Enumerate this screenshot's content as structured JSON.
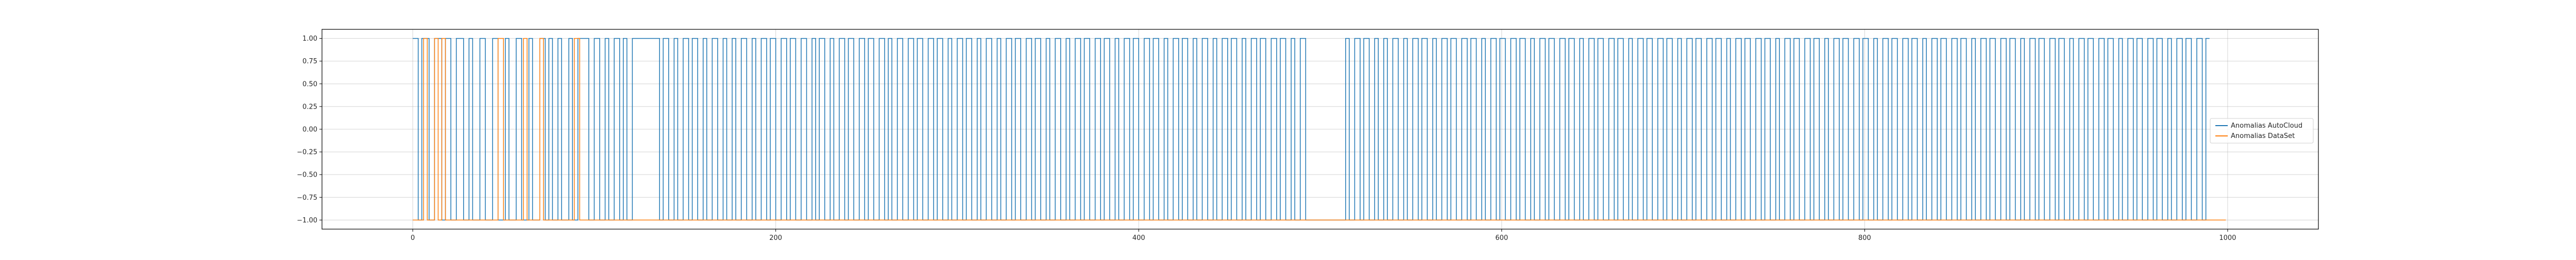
{
  "chart_data": {
    "type": "line",
    "title": "",
    "xlabel": "",
    "ylabel": "",
    "xlim": [
      -50,
      1050
    ],
    "ylim": [
      -1.1,
      1.1
    ],
    "grid": true,
    "legend_position": "center-right",
    "x_ticks": [
      0,
      200,
      400,
      600,
      800,
      1000
    ],
    "x_tick_labels": [
      "0",
      "200",
      "400",
      "600",
      "800",
      "1000"
    ],
    "y_ticks": [
      1.0,
      0.75,
      0.5,
      0.25,
      0.0,
      -0.25,
      -0.5,
      -0.75,
      -1.0
    ],
    "y_tick_labels": [
      "1.00",
      "0.75",
      "0.50",
      "0.25",
      "0.00",
      "−0.25",
      "−0.50",
      "−0.75",
      "−1.00"
    ],
    "series": [
      {
        "name": "Anomalias AutoCloud",
        "color": "#1f77b4",
        "type": "step",
        "x_start": 0,
        "x_end": 990,
        "initial_value": 1,
        "toggle_x": [
          3,
          5,
          9,
          12,
          16,
          18,
          21,
          24,
          28,
          31,
          33,
          37,
          40,
          44,
          47,
          51,
          53,
          57,
          60,
          64,
          66,
          70,
          73,
          75,
          77,
          80,
          82,
          86,
          88,
          91,
          97,
          100,
          103,
          106,
          108,
          111,
          114,
          116,
          118,
          121,
          136,
          138,
          141,
          144,
          146,
          149,
          152,
          154,
          157,
          160,
          162,
          165,
          168,
          171,
          173,
          176,
          178,
          181,
          184,
          187,
          189,
          192,
          195,
          197,
          200,
          203,
          206,
          208,
          211,
          214,
          217,
          220,
          222,
          224,
          227,
          230,
          232,
          235,
          238,
          240,
          243,
          246,
          249,
          251,
          254,
          257,
          260,
          262,
          264,
          267,
          270,
          273,
          276,
          278,
          281,
          284,
          287,
          289,
          292,
          295,
          297,
          300,
          303,
          305,
          308,
          311,
          313,
          316,
          319,
          322,
          324,
          327,
          330,
          332,
          335,
          338,
          341,
          343,
          346,
          349,
          351,
          354,
          357,
          360,
          362,
          365,
          368,
          370,
          373,
          376,
          379,
          381,
          384,
          387,
          389,
          392,
          395,
          397,
          400,
          403,
          406,
          408,
          411,
          414,
          416,
          419,
          422,
          424,
          427,
          430,
          432,
          435,
          438,
          441,
          443,
          446,
          449,
          451,
          454,
          457,
          459,
          462,
          465,
          467,
          470,
          473,
          476,
          478,
          481,
          484,
          486,
          489,
          492,
          514,
          516,
          519,
          522,
          524,
          527,
          530,
          532,
          535,
          537,
          540,
          543,
          546,
          548,
          551,
          554,
          556,
          559,
          562,
          564,
          567,
          570,
          572,
          575,
          578,
          581,
          583,
          586,
          589,
          591,
          594,
          597,
          599,
          602,
          605,
          608,
          610,
          613,
          616,
          618,
          621,
          624,
          626,
          629,
          632,
          635,
          637,
          640,
          643,
          645,
          648,
          651,
          653,
          656,
          659,
          662,
          664,
          667,
          670,
          672,
          675,
          678,
          680,
          683,
          686,
          689,
          691,
          694,
          697,
          699,
          702,
          705,
          707,
          710,
          713,
          716,
          718,
          721,
          724,
          726,
          729,
          732,
          734,
          737,
          740,
          743,
          745,
          748,
          751,
          753,
          756,
          759,
          761,
          764,
          767,
          770,
          772,
          775,
          778,
          780,
          783,
          786,
          788,
          791,
          794,
          797,
          799,
          802,
          805,
          807,
          810,
          813,
          815,
          818,
          821,
          824,
          826,
          829,
          832,
          834,
          837,
          840,
          842,
          845,
          848,
          851,
          853,
          856,
          859,
          861,
          864,
          867,
          869,
          872,
          875,
          878,
          880,
          883,
          886,
          888,
          891,
          894,
          896,
          899,
          902,
          905,
          907,
          910,
          913,
          915,
          918,
          921,
          923,
          926,
          929,
          932,
          934,
          937,
          940,
          942,
          945,
          948,
          950,
          953,
          956,
          959,
          961,
          964,
          967,
          969,
          972,
          975,
          977,
          980,
          983,
          986,
          988
        ]
      },
      {
        "name": "Anomalias DataSet",
        "color": "#ff7f0e",
        "type": "step",
        "x_start": 0,
        "x_end": 999,
        "initial_value": -1,
        "toggle_x": [
          6,
          8,
          12,
          14,
          16,
          18,
          47,
          50,
          61,
          63,
          70,
          72,
          89,
          92
        ]
      }
    ]
  }
}
